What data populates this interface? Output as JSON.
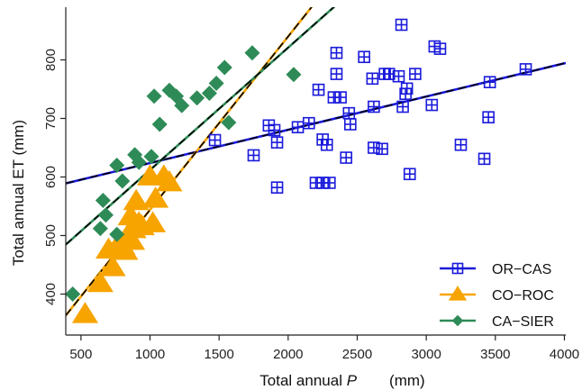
{
  "chart_data": {
    "type": "scatter",
    "xlabel_text": "Total annual ",
    "xlabel_var": "P",
    "xlabel_unit": "(mm)",
    "ylabel": "Total annual ET (mm)",
    "xlim": [
      390,
      4010
    ],
    "ylim": [
      330,
      890
    ],
    "x_ticks": [
      500,
      1000,
      1500,
      2000,
      2500,
      3000,
      3500,
      4000
    ],
    "y_ticks": [
      400,
      500,
      600,
      700,
      800
    ],
    "grid": false,
    "legend_position": "bottom-right",
    "series": [
      {
        "name": "OR−CAS",
        "marker": "square-plus",
        "color": "#1a1adb",
        "fit": {
          "slope": 0.0568,
          "intercept": 567
        },
        "points": [
          [
            1470,
            663
          ],
          [
            1750,
            637
          ],
          [
            1860,
            688
          ],
          [
            1900,
            680
          ],
          [
            1920,
            659
          ],
          [
            1920,
            582
          ],
          [
            2070,
            685
          ],
          [
            2150,
            692
          ],
          [
            2200,
            590
          ],
          [
            2250,
            590
          ],
          [
            2250,
            664
          ],
          [
            2300,
            590
          ],
          [
            2280,
            655
          ],
          [
            2220,
            749
          ],
          [
            2330,
            736
          ],
          [
            2380,
            736
          ],
          [
            2350,
            776
          ],
          [
            2350,
            812
          ],
          [
            2420,
            633
          ],
          [
            2450,
            690
          ],
          [
            2440,
            709
          ],
          [
            2550,
            805
          ],
          [
            2620,
            720
          ],
          [
            2610,
            768
          ],
          [
            2620,
            650
          ],
          [
            2680,
            648
          ],
          [
            2700,
            776
          ],
          [
            2730,
            776
          ],
          [
            2800,
            772
          ],
          [
            2820,
            860
          ],
          [
            2830,
            720
          ],
          [
            2850,
            742
          ],
          [
            2860,
            751
          ],
          [
            2880,
            605
          ],
          [
            2920,
            776
          ],
          [
            3040,
            723
          ],
          [
            3060,
            823
          ],
          [
            3100,
            819
          ],
          [
            3250,
            655
          ],
          [
            3420,
            631
          ],
          [
            3450,
            702
          ],
          [
            3460,
            762
          ],
          [
            3720,
            784
          ]
        ]
      },
      {
        "name": "CO−ROC",
        "marker": "triangle",
        "color": "#f7a400",
        "fit": {
          "slope": 0.296,
          "intercept": 248
        },
        "points": [
          [
            530,
            365
          ],
          [
            640,
            418
          ],
          [
            700,
            475
          ],
          [
            730,
            445
          ],
          [
            760,
            480
          ],
          [
            800,
            482
          ],
          [
            820,
            473
          ],
          [
            840,
            500
          ],
          [
            860,
            532
          ],
          [
            870,
            490
          ],
          [
            880,
            510
          ],
          [
            900,
            558
          ],
          [
            920,
            520
          ],
          [
            940,
            515
          ],
          [
            1000,
            600
          ],
          [
            1020,
            520
          ],
          [
            1040,
            562
          ],
          [
            1100,
            600
          ],
          [
            1140,
            590
          ]
        ]
      },
      {
        "name": "CA−SIER",
        "marker": "diamond",
        "color": "#2e8b57",
        "fit": {
          "slope": 0.209,
          "intercept": 403
        },
        "points": [
          [
            440,
            400
          ],
          [
            640,
            512
          ],
          [
            660,
            560
          ],
          [
            680,
            535
          ],
          [
            760,
            502
          ],
          [
            760,
            620
          ],
          [
            800,
            593
          ],
          [
            890,
            638
          ],
          [
            920,
            625
          ],
          [
            1010,
            635
          ],
          [
            1030,
            738
          ],
          [
            1070,
            690
          ],
          [
            1140,
            748
          ],
          [
            1190,
            738
          ],
          [
            1230,
            722
          ],
          [
            1340,
            735
          ],
          [
            1430,
            743
          ],
          [
            1480,
            760
          ],
          [
            1540,
            787
          ],
          [
            1570,
            693
          ],
          [
            1740,
            812
          ],
          [
            2040,
            775
          ]
        ]
      }
    ]
  }
}
